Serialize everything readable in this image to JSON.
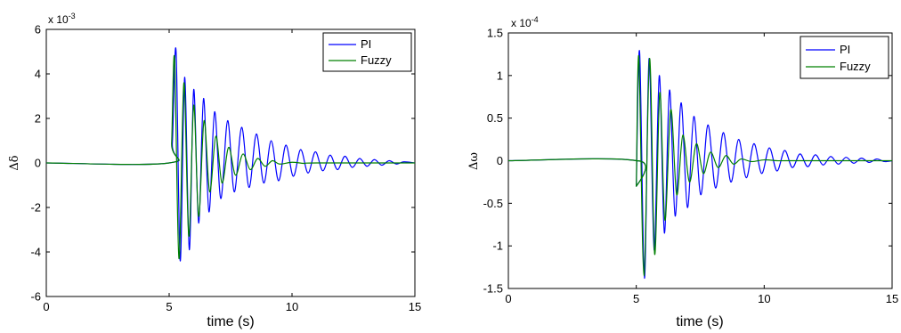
{
  "chart_data": [
    {
      "type": "line",
      "xlabel": "time (s)",
      "ylabel": "Δδ",
      "xlim": [
        0,
        15
      ],
      "ylim": [
        -6,
        6
      ],
      "exponent_label": "x 10",
      "exponent_power": "-3",
      "xticks": [
        "0",
        "5",
        "10",
        "15"
      ],
      "yticks": [
        "-6",
        "-4",
        "-2",
        "0",
        "2",
        "4",
        "6"
      ],
      "legend": {
        "position": "top-right",
        "entries": [
          "PI",
          "Fuzzy"
        ]
      },
      "grid": false,
      "series": [
        {
          "name": "PI",
          "color": "#0000ff",
          "x": [
            0,
            5.0,
            5.13,
            5.28,
            5.45,
            5.63,
            5.82,
            6.0,
            6.2,
            6.4,
            6.62,
            6.85,
            7.1,
            7.38,
            7.65,
            7.95,
            8.25,
            8.55,
            8.85,
            9.15,
            9.45,
            9.75,
            10.05,
            10.35,
            10.65,
            10.95,
            11.25,
            11.55,
            11.85,
            12.15,
            12.45,
            12.75,
            13.05,
            13.35,
            13.65,
            13.95,
            14.25,
            14.55,
            15
          ],
          "y": [
            0,
            0,
            0.9,
            5.05,
            -4.4,
            3.85,
            -3.9,
            3.3,
            -2.7,
            2.9,
            -2.2,
            2.3,
            -1.6,
            1.9,
            -1.3,
            1.6,
            -1.1,
            1.3,
            -0.9,
            1.0,
            -0.8,
            0.8,
            -0.6,
            0.6,
            -0.45,
            0.5,
            -0.35,
            0.35,
            -0.3,
            0.3,
            -0.2,
            0.2,
            -0.15,
            0.15,
            -0.1,
            0.1,
            -0.05,
            0.05,
            0
          ]
        },
        {
          "name": "Fuzzy",
          "color": "#008000",
          "x": [
            0,
            5.0,
            5.1,
            5.22,
            5.4,
            5.6,
            5.8,
            6.0,
            6.2,
            6.42,
            6.65,
            6.9,
            7.15,
            7.42,
            7.7,
            8.0,
            8.3,
            8.6,
            8.9,
            9.2,
            9.5,
            10.0,
            10.5,
            11.0,
            15
          ],
          "y": [
            0,
            0,
            0.9,
            4.7,
            -4.3,
            3.6,
            -3.3,
            2.6,
            -2.4,
            1.9,
            -1.3,
            1.2,
            -0.9,
            0.7,
            -0.55,
            0.4,
            -0.3,
            0.2,
            -0.15,
            0.1,
            -0.05,
            0.03,
            -0.02,
            0.0,
            0
          ]
        }
      ]
    },
    {
      "type": "line",
      "xlabel": "time (s)",
      "ylabel": "Δω",
      "xlim": [
        0,
        15
      ],
      "ylim": [
        -1.5,
        1.5
      ],
      "exponent_label": "x 10",
      "exponent_power": "-4",
      "xticks": [
        "0",
        "5",
        "10",
        "15"
      ],
      "yticks": [
        "-1.5",
        "-1",
        "-0.5",
        "0",
        "0.5",
        "1",
        "1.5"
      ],
      "legend": {
        "position": "top-right",
        "entries": [
          "PI",
          "Fuzzy"
        ]
      },
      "grid": false,
      "series": [
        {
          "name": "PI",
          "color": "#0000ff",
          "x": [
            0,
            5.0,
            5.001,
            5.13,
            5.32,
            5.5,
            5.7,
            5.9,
            6.1,
            6.3,
            6.52,
            6.75,
            7.0,
            7.25,
            7.52,
            7.8,
            8.1,
            8.4,
            8.7,
            9.0,
            9.3,
            9.6,
            9.9,
            10.2,
            10.5,
            10.8,
            11.1,
            11.4,
            11.7,
            12.0,
            12.3,
            12.6,
            12.9,
            13.2,
            13.5,
            13.8,
            14.1,
            14.4,
            14.7,
            15
          ],
          "y": [
            0,
            0,
            -0.3,
            1.28,
            -1.38,
            1.2,
            -1.05,
            1.0,
            -0.85,
            0.83,
            -0.65,
            0.68,
            -0.55,
            0.52,
            -0.4,
            0.42,
            -0.32,
            0.33,
            -0.25,
            0.25,
            -0.2,
            0.2,
            -0.15,
            0.15,
            -0.12,
            0.12,
            -0.08,
            0.08,
            -0.07,
            0.07,
            -0.05,
            0.05,
            -0.04,
            0.04,
            -0.03,
            0.03,
            -0.02,
            0.02,
            -0.01,
            0.0
          ]
        },
        {
          "name": "Fuzzy",
          "color": "#008000",
          "x": [
            0,
            5.0,
            5.001,
            5.1,
            5.3,
            5.52,
            5.72,
            5.92,
            6.12,
            6.35,
            6.58,
            6.82,
            7.08,
            7.35,
            7.62,
            7.9,
            8.2,
            8.5,
            8.8,
            9.1,
            9.5,
            10.0,
            10.5,
            11.0,
            15
          ],
          "y": [
            0,
            0,
            -0.3,
            1.22,
            -1.35,
            1.2,
            -1.1,
            0.8,
            -0.7,
            0.6,
            -0.4,
            0.3,
            -0.25,
            0.2,
            -0.15,
            0.1,
            -0.08,
            0.06,
            -0.04,
            0.02,
            -0.01,
            0.01,
            0.0,
            0.0,
            0
          ]
        }
      ]
    }
  ]
}
